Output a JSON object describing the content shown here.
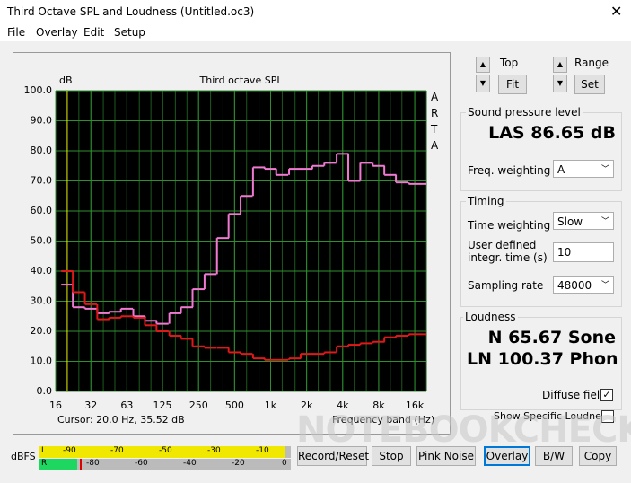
{
  "window": {
    "title": "Third Octave SPL and Loudness (Untitled.oc3)"
  },
  "menu": [
    "File",
    "Overlay",
    "Edit",
    "Setup"
  ],
  "chart_data": {
    "type": "step",
    "title": "Third octave SPL",
    "y_label": "dB",
    "side_label": "ARTA",
    "x_label": "Frequency band (Hz)",
    "cursor": "Cursor:   20.0 Hz, 35.52 dB",
    "xscale": "log",
    "xlim": [
      16,
      20000
    ],
    "xticks": [
      16,
      {
        "value": 31.5,
        "label": "32"
      },
      63,
      125,
      250,
      500,
      {
        "value": 1000,
        "label": "1k"
      },
      {
        "value": 2000,
        "label": "2k"
      },
      {
        "value": 4000,
        "label": "4k"
      },
      {
        "value": 8000,
        "label": "8k"
      },
      {
        "value": 16000,
        "label": "16k"
      }
    ],
    "ylim": [
      0,
      100
    ],
    "yticks": [
      {
        "value": 0,
        "label": "0.0"
      },
      {
        "value": 10,
        "label": "10.0"
      },
      {
        "value": 20,
        "label": "20.0"
      },
      {
        "value": 30,
        "label": "30.0"
      },
      {
        "value": 40,
        "label": "40.0"
      },
      {
        "value": 50,
        "label": "50.0"
      },
      {
        "value": 60,
        "label": "60.0"
      },
      {
        "value": 70,
        "label": "70.0"
      },
      {
        "value": 80,
        "label": "80.0"
      },
      {
        "value": 90,
        "label": "90.0"
      },
      {
        "value": 100,
        "label": "100.0"
      }
    ],
    "grid": true,
    "x": [
      20,
      25,
      31.5,
      40,
      50,
      63,
      80,
      100,
      125,
      160,
      200,
      250,
      315,
      400,
      500,
      630,
      800,
      1000,
      1250,
      1600,
      2000,
      2500,
      3150,
      4000,
      5000,
      6300,
      8000,
      10000,
      12500,
      16000,
      20000
    ],
    "series": [
      {
        "color": "#f07ad2",
        "values": [
          35.5,
          28,
          27.5,
          26,
          26.5,
          27.5,
          25,
          23.5,
          22.5,
          26,
          28,
          34,
          39,
          51,
          59,
          65,
          74.5,
          74,
          72,
          74,
          74,
          75,
          76,
          79,
          70,
          76,
          75,
          72,
          69.5,
          69,
          69
        ]
      },
      {
        "color": "#e01818",
        "values": [
          40,
          33,
          29,
          24,
          24.5,
          25,
          24.5,
          22,
          20,
          18.5,
          17.5,
          15,
          14.5,
          14.5,
          13,
          12.5,
          11,
          10.5,
          10.5,
          11,
          12.5,
          12.5,
          13,
          15,
          15.5,
          16,
          16.5,
          18,
          18.5,
          19,
          19
        ]
      }
    ]
  },
  "controls": {
    "top_label": "Top",
    "fit": "Fit",
    "range_label": "Range",
    "set": "Set"
  },
  "spl": {
    "legend": "Sound pressure level",
    "reading": "LAS 86.65 dB",
    "weighting_label": "Freq. weighting",
    "weighting": "A"
  },
  "timing": {
    "legend": "Timing",
    "time_weighting_label": "Time weighting",
    "time_weighting": "Slow",
    "integr_label": "User defined integr. time (s)",
    "integr": "10",
    "rate_label": "Sampling rate",
    "rate": "48000"
  },
  "loudness": {
    "legend": "Loudness",
    "n": "N 65.67 Sone",
    "ln": "LN 100.37 Phon",
    "diffuse": "Diffuse field",
    "specific": "Show Specific Loudness"
  },
  "meter": {
    "unit": "dBFS",
    "l": "L",
    "r": "R",
    "l_scale": [
      "-90",
      "-70",
      "-50",
      "-30",
      "-10"
    ],
    "r_scale": [
      "-80",
      "-60",
      "-40",
      "-20",
      "0"
    ]
  },
  "buttons": [
    "Record/Reset",
    "Stop",
    "Pink Noise",
    "Overlay",
    "B/W",
    "Copy"
  ],
  "watermark": "NOTEBOOKCHECK"
}
